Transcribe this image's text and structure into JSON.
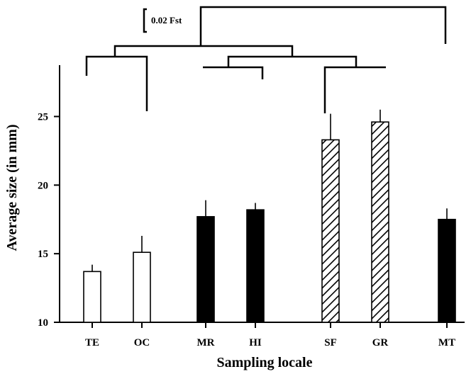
{
  "chart_data": {
    "type": "bar",
    "xlabel": "Sampling locale",
    "ylabel": "Average size (in mm)",
    "ylim": [
      10,
      29
    ],
    "yticks": [
      10,
      15,
      20,
      25
    ],
    "categories": [
      "TE",
      "OC",
      "MR",
      "HI",
      "SF",
      "GR",
      "MT"
    ],
    "values": [
      13.7,
      15.1,
      17.7,
      18.2,
      23.3,
      24.6,
      17.5
    ],
    "errors": [
      0.5,
      1.2,
      1.2,
      0.5,
      1.9,
      0.9,
      0.8
    ],
    "bar_styles": [
      "open",
      "open",
      "solid",
      "solid",
      "hatched",
      "hatched",
      "solid"
    ],
    "dendrogram_scale": "0.02 Fst",
    "colors": {
      "ink": "#000000",
      "open_fill": "#ffffff"
    }
  }
}
